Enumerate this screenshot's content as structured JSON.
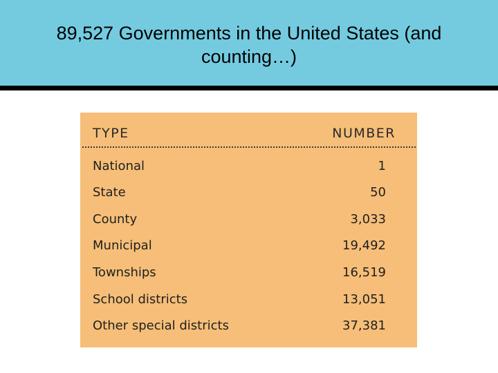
{
  "slide": {
    "title": "89,527 Governments in the United States (and counting…)"
  },
  "table": {
    "headers": {
      "type": "TYPE",
      "number": "NUMBER"
    },
    "rows": [
      {
        "type": "National",
        "number": "1"
      },
      {
        "type": "State",
        "number": "50"
      },
      {
        "type": "County",
        "number": "3,033"
      },
      {
        "type": "Municipal",
        "number": "19,492"
      },
      {
        "type": "Townships",
        "number": "16,519"
      },
      {
        "type": "School districts",
        "number": "13,051"
      },
      {
        "type": "Other special districts",
        "number": "37,381"
      }
    ]
  },
  "colors": {
    "title_band": "#74cbe0",
    "title_rule": "#000000",
    "table_background": "#f6be78"
  }
}
